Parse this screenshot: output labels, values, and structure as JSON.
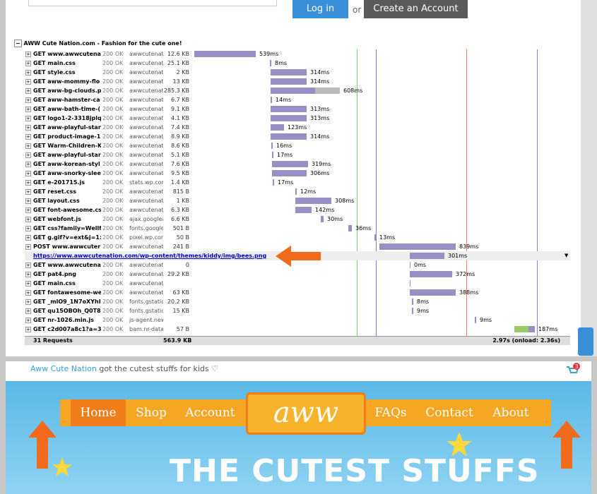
{
  "login": {
    "login_button": "Log in",
    "or": "or",
    "create_button": "Create an Account"
  },
  "network": {
    "title": "AWW Cute Nation.com - Fashion for the cute one!",
    "requests": [
      [
        "GET www.awwcutenati",
        "200 OK",
        "awwcutenati",
        "12.6 KB",
        "539ms"
      ],
      [
        "GET main.css",
        "200 OK",
        "awwcutenati",
        "25.1 KB",
        "8ms"
      ],
      [
        "GET style.css",
        "200 OK",
        "awwcutenati",
        "2 KB",
        "314ms"
      ],
      [
        "GET aww-mommy-flo",
        "200 OK",
        "awwcutenati",
        "13 KB",
        "314ms"
      ],
      [
        "GET aww-bg-clouds.p",
        "200 OK",
        "awwcutenati",
        "285.3 KB",
        "608ms"
      ],
      [
        "GET aww-hamster-ca",
        "200 OK",
        "awwcutenati",
        "6.7 KB",
        "14ms"
      ],
      [
        "GET aww-bath-time-(",
        "200 OK",
        "awwcutenati",
        "9.1 KB",
        "313ms"
      ],
      [
        "GET logo1-2-3318jplq",
        "200 OK",
        "awwcutenati",
        "4.1 KB",
        "313ms"
      ],
      [
        "GET aww-playful-star",
        "200 OK",
        "awwcutenati",
        "7.4 KB",
        "123ms"
      ],
      [
        "GET product-image-1",
        "200 OK",
        "awwcutenati",
        "8.9 KB",
        "314ms"
      ],
      [
        "GET Warm-Children-K",
        "200 OK",
        "awwcutenati",
        "8.6 KB",
        "16ms"
      ],
      [
        "GET aww-playful-star",
        "200 OK",
        "awwcutenati",
        "5.1 KB",
        "17ms"
      ],
      [
        "GET aww-korean-styl",
        "200 OK",
        "awwcutenati",
        "7.6 KB",
        "319ms"
      ],
      [
        "GET aww-snorky-slee",
        "200 OK",
        "awwcutenati",
        "9.5 KB",
        "306ms"
      ],
      [
        "GET e-201715.js",
        "200 OK",
        "stats.wp.com",
        "1.4 KB",
        "17ms"
      ],
      [
        "GET reset.css",
        "200 OK",
        "awwcutenati",
        "815 B",
        "12ms"
      ],
      [
        "GET layout.css",
        "200 OK",
        "awwcutenati",
        "1 KB",
        "308ms"
      ],
      [
        "GET font-awesome.cs",
        "200 OK",
        "awwcutenati",
        "6.3 KB",
        "142ms"
      ],
      [
        "GET webfont.js",
        "200 OK",
        "ajax.googlea",
        "6.6 KB",
        "30ms"
      ],
      [
        "GET css?family=Wellf",
        "200 OK",
        "fonts.google",
        "501 B",
        "36ms"
      ],
      [
        "GET g.gif?v=ext&j=1:",
        "200 OK",
        "pixel.wp.com",
        "50 B",
        "13ms"
      ],
      [
        "POST www.awwcuter",
        "200 OK",
        "awwcutenati",
        "241 B",
        "839ms"
      ],
      [
        "https://www.awwcutenation.com/wp-content/themes/kiddy/img/bees.png",
        "301ms"
      ],
      [
        "GET www.awwcutenati",
        "200 OK",
        "awwcutenati",
        "0",
        "0ms"
      ],
      [
        "GET pat4.png",
        "200 OK",
        "awwcutenati",
        "29.2 KB",
        "372ms"
      ],
      [
        "GET main.css",
        "200 OK",
        "awwcutenati"
      ],
      [
        "GET fontawesome-we",
        "200 OK",
        "awwcutenati",
        "63 KB",
        "388ms"
      ],
      [
        "GET _mlO9_1N7oXYhI",
        "200 OK",
        "fonts.gstatic",
        "20.2 KB",
        "8ms"
      ],
      [
        "GET qu15OBOh_Q0T8",
        "200 OK",
        "fonts.gstatic",
        "15 KB",
        "9ms"
      ],
      [
        "GET nr-1026.min.js",
        "200 OK",
        "js-agent.new",
        "9ms"
      ],
      [
        "GET c2d007a8c1?a=3",
        "200 OK",
        "bam.nr-data",
        "57 B",
        "187ms"
      ]
    ],
    "footer": {
      "requests": "31 Requests",
      "size": "563.9 KB",
      "time": "2.97s (onload: 2.36s)"
    }
  },
  "site": {
    "brand": "Aww Cute Nation",
    "tagline": "got the cutest stuffs for kids ♡",
    "cart_count": "3",
    "nav": [
      "Home",
      "Shop",
      "Account",
      "FAQs",
      "Contact",
      "About"
    ],
    "logo": "aww",
    "headline": "THE CUTEST STUFFS"
  }
}
